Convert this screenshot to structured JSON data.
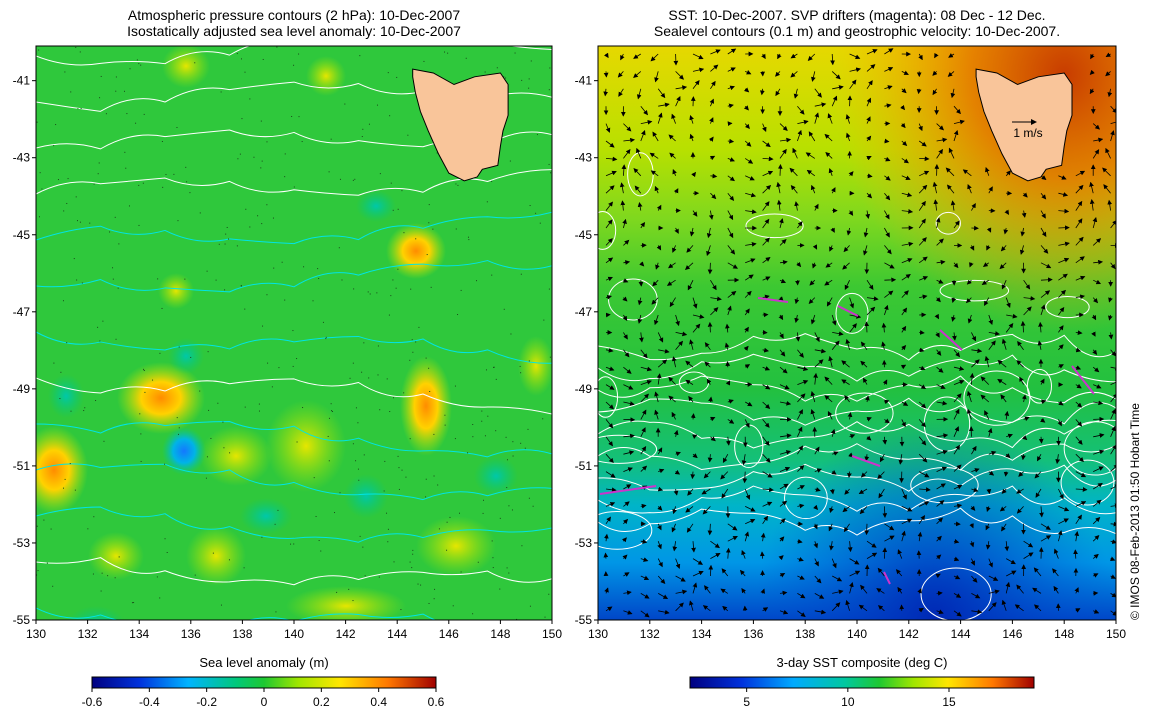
{
  "left_panel": {
    "title_line1": "Atmospheric pressure contours (2 hPa): 10-Dec-2007",
    "title_line2": "Isostatically adjusted sea level anomaly: 10-Dec-2007",
    "colorbar_label": "Sea level anomaly (m)",
    "colorbar_ticks": [
      "-0.6",
      "-0.4",
      "-0.2",
      "0",
      "0.2",
      "0.4",
      "0.6"
    ]
  },
  "right_panel": {
    "title_line1": "SST: 10-Dec-2007. SVP drifters (magenta): 08 Dec - 12 Dec.",
    "title_line2": "Sealevel contours (0.1 m) and geostrophic velocity: 10-Dec-2007.",
    "colorbar_label": "3-day SST composite (deg C)",
    "colorbar_ticks": [
      "5",
      "10",
      "15"
    ],
    "velocity_legend": "1 m/s"
  },
  "axes": {
    "lon_ticks": [
      "130",
      "132",
      "134",
      "136",
      "138",
      "140",
      "142",
      "144",
      "146",
      "148",
      "150"
    ],
    "lat_ticks": [
      "-41",
      "-43",
      "-45",
      "-47",
      "-49",
      "-51",
      "-53",
      "-55"
    ],
    "lon_range": [
      130,
      150
    ],
    "lat_range": [
      -55,
      -40.1
    ]
  },
  "copyright": "© IMOS 08-Feb-2013 01:50 Hobart Time",
  "colors": {
    "land": "#f9c59a",
    "pressure_contours": "#00e5e5",
    "sealevel_contours": "#ffffff",
    "drifters": "#cc33cc"
  }
}
